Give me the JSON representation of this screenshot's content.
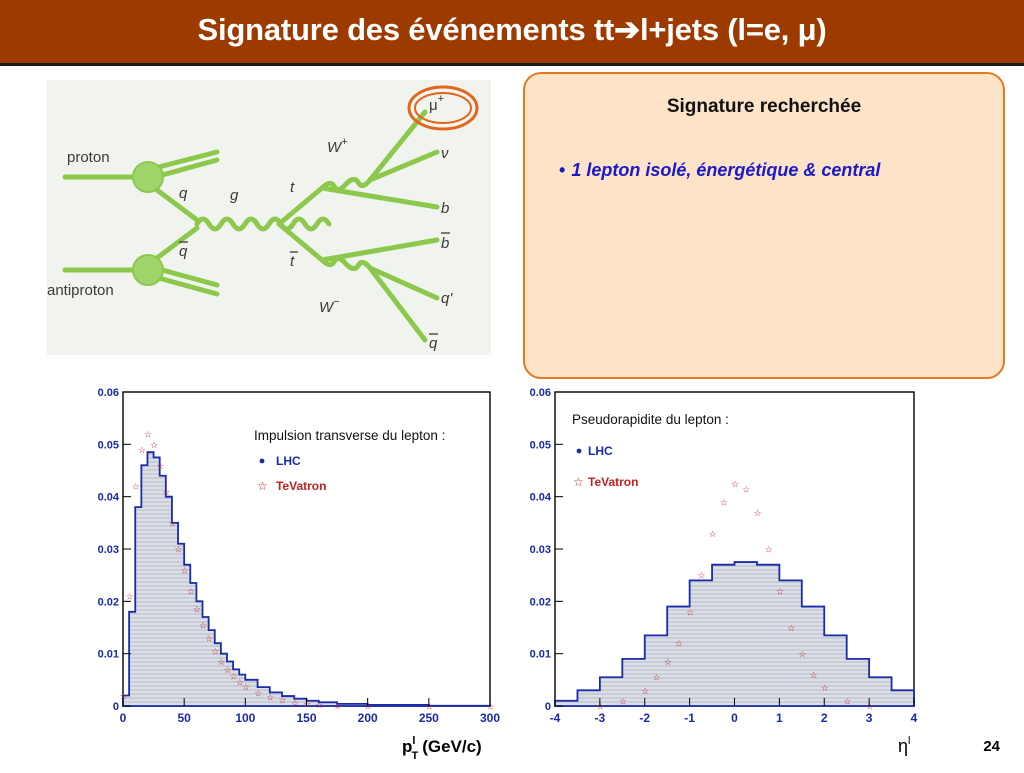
{
  "slide": {
    "title_prefix": "Signature des événements tt",
    "title_suffix": "l+jets (l=e, μ)",
    "page_number": "24"
  },
  "info_box": {
    "title": "Signature recherchée",
    "bullet": "1 lepton isolé, énergétique & central"
  },
  "feynman": {
    "labels": {
      "proton": "proton",
      "antiproton": "antiproton",
      "q": "q",
      "qbar": "q",
      "g": "g",
      "t": "t",
      "tbar": "t",
      "wplus": "W",
      "wplus_sign": "+",
      "wminus": "W",
      "wminus_sign": "−",
      "mu": "μ",
      "mu_sign": "+",
      "nu": "ν",
      "b": "b",
      "bbar": "b",
      "qprime": "q'",
      "qbar2": "q"
    },
    "colors": {
      "lines": "#8cc84b",
      "blob": "#9fd56a",
      "highlight": "#e0661c"
    }
  },
  "chart_data": [
    {
      "type": "bar",
      "title": "Impulsion transverse du lepton :",
      "xlabel_main": "p",
      "xlabel_sup": "l",
      "xlabel_sub": "T",
      "xlabel_unit": "(GeV/c)",
      "xlim": [
        0,
        300
      ],
      "ylim": [
        0,
        0.06
      ],
      "xticks": [
        "0",
        "50",
        "100",
        "150",
        "200",
        "250",
        "300"
      ],
      "yticks": [
        "0",
        "0.01",
        "0.02",
        "0.03",
        "0.04",
        "0.05",
        "0.06"
      ],
      "legend_position": "top-right",
      "series": [
        {
          "name": "LHC",
          "style": "histogram",
          "color": "#1a2aa8",
          "x": [
            0,
            5,
            10,
            15,
            20,
            25,
            30,
            35,
            40,
            45,
            50,
            55,
            60,
            65,
            70,
            75,
            80,
            85,
            90,
            95,
            100,
            110,
            120,
            130,
            140,
            150,
            160,
            175,
            200,
            250,
            300
          ],
          "y": [
            0.002,
            0.018,
            0.038,
            0.046,
            0.0485,
            0.0475,
            0.044,
            0.04,
            0.035,
            0.031,
            0.027,
            0.0235,
            0.02,
            0.017,
            0.0145,
            0.012,
            0.01,
            0.0085,
            0.007,
            0.006,
            0.005,
            0.0036,
            0.0026,
            0.0019,
            0.0014,
            0.001,
            0.0007,
            0.0004,
            0.0002,
            5e-05,
            0.0
          ]
        },
        {
          "name": "TeVatron",
          "style": "markers",
          "color": "#c02020",
          "x": [
            0,
            5,
            10,
            15,
            20,
            25,
            30,
            35,
            40,
            45,
            50,
            55,
            60,
            65,
            70,
            75,
            80,
            85,
            90,
            95,
            100,
            110,
            120,
            130,
            140,
            150,
            160,
            175,
            200,
            250,
            300
          ],
          "y": [
            0.002,
            0.021,
            0.042,
            0.049,
            0.052,
            0.05,
            0.046,
            0.041,
            0.035,
            0.03,
            0.026,
            0.022,
            0.0185,
            0.0155,
            0.013,
            0.0105,
            0.0085,
            0.007,
            0.0057,
            0.0046,
            0.0037,
            0.0025,
            0.0017,
            0.0011,
            0.0007,
            0.0005,
            0.0003,
            0.0001,
            5e-05,
            0.0,
            0.0
          ]
        }
      ]
    },
    {
      "type": "bar",
      "title": "Pseudorapidite du lepton :",
      "xlabel_main": "η",
      "xlabel_sup": "l",
      "xlim": [
        -4,
        4
      ],
      "ylim": [
        0,
        0.06
      ],
      "xticks": [
        "-4",
        "-3",
        "-2",
        "-1",
        "0",
        "1",
        "2",
        "3",
        "4"
      ],
      "yticks": [
        "0",
        "0.01",
        "0.02",
        "0.03",
        "0.04",
        "0.05",
        "0.06"
      ],
      "legend_position": "top-left",
      "series": [
        {
          "name": "LHC",
          "style": "histogram",
          "color": "#1a2aa8",
          "x": [
            -4,
            -3.5,
            -3,
            -2.5,
            -2,
            -1.5,
            -1,
            -0.5,
            0,
            0.5,
            1,
            1.5,
            2,
            2.5,
            3,
            3.5,
            4
          ],
          "y": [
            0.001,
            0.003,
            0.0055,
            0.009,
            0.0135,
            0.019,
            0.024,
            0.027,
            0.0275,
            0.027,
            0.024,
            0.019,
            0.0135,
            0.009,
            0.0055,
            0.003,
            0.001
          ]
        },
        {
          "name": "TeVatron",
          "style": "markers",
          "color": "#c02020",
          "x": [
            -3,
            -2.5,
            -2,
            -1.75,
            -1.5,
            -1.25,
            -1,
            -0.75,
            -0.5,
            -0.25,
            0,
            0.25,
            0.5,
            0.75,
            1,
            1.25,
            1.5,
            1.75,
            2,
            2.5,
            3
          ],
          "y": [
            0.0,
            0.001,
            0.003,
            0.0055,
            0.0085,
            0.012,
            0.018,
            0.025,
            0.033,
            0.039,
            0.0425,
            0.0415,
            0.037,
            0.03,
            0.022,
            0.015,
            0.01,
            0.006,
            0.0035,
            0.001,
            0.0
          ]
        }
      ]
    }
  ]
}
